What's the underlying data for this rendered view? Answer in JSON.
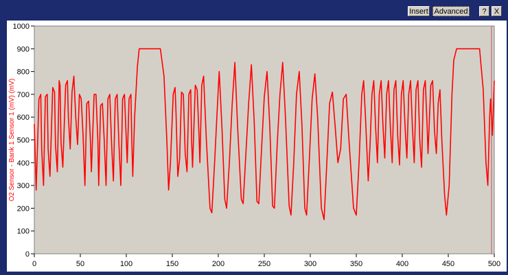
{
  "toolbar": {
    "insert_label": "Insert",
    "advanced_label": "Advanced",
    "help_label": "?",
    "close_label": "X"
  },
  "colors": {
    "window_frame": "#1c2a6e",
    "plot_background": "#d4d0c8",
    "series_line": "#ff0000",
    "axis_label": "#ff0000"
  },
  "chart_data": {
    "type": "line",
    "ylabel": "O2 Sensor - Bank 1 Sensor 1 (mV) (mV)",
    "xlabel": "",
    "xlim": [
      0,
      500
    ],
    "ylim": [
      0,
      1000
    ],
    "x_ticks": [
      "0",
      "50",
      "100",
      "150",
      "200",
      "250",
      "300",
      "350",
      "400",
      "450",
      "500"
    ],
    "y_ticks": [
      "0",
      "100",
      "200",
      "300",
      "400",
      "500",
      "600",
      "700",
      "800",
      "900",
      "1000"
    ],
    "grid": false,
    "cursor_x": 497,
    "series": [
      {
        "points": [
          [
            0,
            570
          ],
          [
            2,
            280
          ],
          [
            5,
            680
          ],
          [
            7,
            700
          ],
          [
            8,
            460
          ],
          [
            10,
            300
          ],
          [
            12,
            690
          ],
          [
            14,
            700
          ],
          [
            15,
            460
          ],
          [
            17,
            340
          ],
          [
            20,
            730
          ],
          [
            22,
            710
          ],
          [
            23,
            480
          ],
          [
            25,
            360
          ],
          [
            27,
            760
          ],
          [
            28,
            740
          ],
          [
            29,
            490
          ],
          [
            31,
            380
          ],
          [
            34,
            740
          ],
          [
            36,
            760
          ],
          [
            37,
            600
          ],
          [
            39,
            460
          ],
          [
            41,
            710
          ],
          [
            43,
            780
          ],
          [
            45,
            600
          ],
          [
            47,
            480
          ],
          [
            49,
            700
          ],
          [
            51,
            680
          ],
          [
            53,
            520
          ],
          [
            55,
            300
          ],
          [
            57,
            660
          ],
          [
            59,
            670
          ],
          [
            61,
            500
          ],
          [
            62,
            360
          ],
          [
            65,
            700
          ],
          [
            67,
            700
          ],
          [
            69,
            500
          ],
          [
            70,
            300
          ],
          [
            72,
            650
          ],
          [
            74,
            660
          ],
          [
            76,
            500
          ],
          [
            78,
            300
          ],
          [
            80,
            680
          ],
          [
            82,
            700
          ],
          [
            84,
            480
          ],
          [
            86,
            320
          ],
          [
            88,
            680
          ],
          [
            90,
            700
          ],
          [
            92,
            480
          ],
          [
            94,
            300
          ],
          [
            96,
            680
          ],
          [
            98,
            700
          ],
          [
            100,
            500
          ],
          [
            101,
            400
          ],
          [
            103,
            680
          ],
          [
            105,
            700
          ],
          [
            106,
            500
          ],
          [
            107,
            340
          ],
          [
            109,
            600
          ],
          [
            112,
            820
          ],
          [
            114,
            900
          ],
          [
            137,
            900
          ],
          [
            141,
            780
          ],
          [
            144,
            500
          ],
          [
            146,
            280
          ],
          [
            148,
            400
          ],
          [
            151,
            700
          ],
          [
            153,
            730
          ],
          [
            154,
            620
          ],
          [
            156,
            340
          ],
          [
            158,
            420
          ],
          [
            160,
            710
          ],
          [
            162,
            700
          ],
          [
            164,
            440
          ],
          [
            166,
            360
          ],
          [
            168,
            700
          ],
          [
            170,
            720
          ],
          [
            171,
            500
          ],
          [
            172,
            380
          ],
          [
            175,
            740
          ],
          [
            177,
            720
          ],
          [
            179,
            520
          ],
          [
            180,
            400
          ],
          [
            182,
            740
          ],
          [
            184,
            780
          ],
          [
            187,
            500
          ],
          [
            191,
            200
          ],
          [
            193,
            180
          ],
          [
            196,
            400
          ],
          [
            199,
            650
          ],
          [
            201,
            800
          ],
          [
            204,
            550
          ],
          [
            207,
            240
          ],
          [
            209,
            200
          ],
          [
            212,
            400
          ],
          [
            215,
            650
          ],
          [
            218,
            840
          ],
          [
            221,
            560
          ],
          [
            225,
            240
          ],
          [
            227,
            220
          ],
          [
            230,
            440
          ],
          [
            233,
            660
          ],
          [
            236,
            830
          ],
          [
            239,
            580
          ],
          [
            242,
            230
          ],
          [
            244,
            220
          ],
          [
            247,
            460
          ],
          [
            250,
            690
          ],
          [
            253,
            800
          ],
          [
            256,
            560
          ],
          [
            259,
            210
          ],
          [
            261,
            200
          ],
          [
            264,
            480
          ],
          [
            267,
            700
          ],
          [
            270,
            840
          ],
          [
            273,
            600
          ],
          [
            277,
            210
          ],
          [
            279,
            170
          ],
          [
            282,
            400
          ],
          [
            285,
            700
          ],
          [
            288,
            800
          ],
          [
            291,
            560
          ],
          [
            294,
            200
          ],
          [
            296,
            170
          ],
          [
            299,
            420
          ],
          [
            302,
            680
          ],
          [
            305,
            790
          ],
          [
            308,
            600
          ],
          [
            312,
            200
          ],
          [
            315,
            150
          ],
          [
            318,
            400
          ],
          [
            321,
            660
          ],
          [
            324,
            710
          ],
          [
            327,
            560
          ],
          [
            330,
            400
          ],
          [
            333,
            460
          ],
          [
            336,
            680
          ],
          [
            339,
            700
          ],
          [
            342,
            500
          ],
          [
            347,
            200
          ],
          [
            350,
            170
          ],
          [
            353,
            400
          ],
          [
            356,
            700
          ],
          [
            358,
            760
          ],
          [
            360,
            600
          ],
          [
            363,
            320
          ],
          [
            365,
            480
          ],
          [
            367,
            700
          ],
          [
            369,
            760
          ],
          [
            371,
            560
          ],
          [
            373,
            400
          ],
          [
            375,
            700
          ],
          [
            377,
            760
          ],
          [
            379,
            560
          ],
          [
            381,
            420
          ],
          [
            383,
            700
          ],
          [
            385,
            760
          ],
          [
            387,
            560
          ],
          [
            389,
            400
          ],
          [
            391,
            720
          ],
          [
            393,
            760
          ],
          [
            395,
            520
          ],
          [
            397,
            390
          ],
          [
            399,
            700
          ],
          [
            401,
            760
          ],
          [
            403,
            560
          ],
          [
            405,
            420
          ],
          [
            407,
            700
          ],
          [
            409,
            760
          ],
          [
            411,
            560
          ],
          [
            413,
            400
          ],
          [
            415,
            720
          ],
          [
            417,
            760
          ],
          [
            419,
            500
          ],
          [
            421,
            380
          ],
          [
            423,
            720
          ],
          [
            425,
            760
          ],
          [
            427,
            560
          ],
          [
            428,
            440
          ],
          [
            431,
            740
          ],
          [
            433,
            760
          ],
          [
            435,
            540
          ],
          [
            437,
            440
          ],
          [
            439,
            660
          ],
          [
            441,
            720
          ],
          [
            443,
            500
          ],
          [
            446,
            260
          ],
          [
            448,
            170
          ],
          [
            451,
            300
          ],
          [
            454,
            700
          ],
          [
            456,
            850
          ],
          [
            459,
            900
          ],
          [
            484,
            900
          ],
          [
            488,
            720
          ],
          [
            491,
            400
          ],
          [
            493,
            300
          ],
          [
            495,
            600
          ],
          [
            496,
            680
          ],
          [
            498,
            520
          ],
          [
            500,
            760
          ]
        ]
      }
    ]
  }
}
